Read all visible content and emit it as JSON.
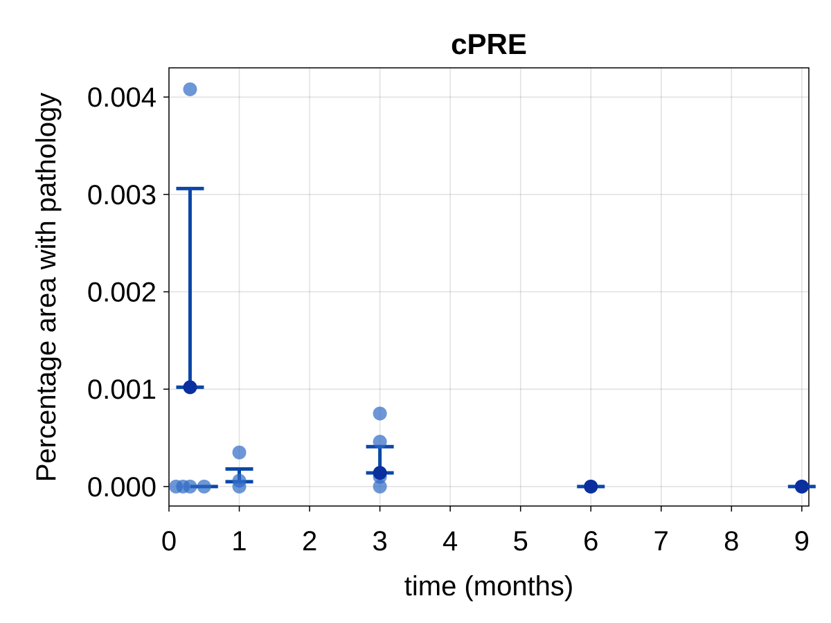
{
  "chart_data": {
    "type": "scatter",
    "title": "cPRE",
    "xlabel": "time (months)",
    "ylabel": "Percentage area with pathology",
    "xlim": [
      0,
      9.1
    ],
    "ylim": [
      -0.0002,
      0.0043
    ],
    "xticks": [
      0,
      1,
      2,
      3,
      4,
      5,
      6,
      7,
      8,
      9
    ],
    "xtick_labels": [
      "0",
      "1",
      "2",
      "3",
      "4",
      "5",
      "6",
      "7",
      "8",
      "9"
    ],
    "yticks": [
      0,
      0.001,
      0.002,
      0.003,
      0.004
    ],
    "ytick_labels": [
      "0.000",
      "0.001",
      "0.002",
      "0.003",
      "0.004"
    ],
    "grid": true,
    "colors": {
      "points": "#2d69c4",
      "points_opacity": 0.7,
      "mean_marker": "#0a2f9e",
      "errorbar": "#0b47a8"
    },
    "points": [
      {
        "x": 0.1,
        "y": 0
      },
      {
        "x": 0.2,
        "y": 0
      },
      {
        "x": 0.3,
        "y": 0
      },
      {
        "x": 0.3,
        "y": 0.00408
      },
      {
        "x": 0.5,
        "y": 0
      },
      {
        "x": 1,
        "y": 0
      },
      {
        "x": 1,
        "y": 6e-05
      },
      {
        "x": 1,
        "y": 0.00035
      },
      {
        "x": 3,
        "y": 0
      },
      {
        "x": 3,
        "y": 0.0001
      },
      {
        "x": 3,
        "y": 0.00046
      },
      {
        "x": 3,
        "y": 0.00075
      },
      {
        "x": 6,
        "y": 0
      },
      {
        "x": 9,
        "y": 0
      }
    ],
    "summary": [
      {
        "x": 0.3,
        "mean": 0.00102,
        "low": 0.00102,
        "high": 0.00306,
        "mean_point": true
      },
      {
        "x": 0.5,
        "mean": 0,
        "low": 0,
        "high": 0,
        "mean_point": false
      },
      {
        "x": 1,
        "mean": 5e-05,
        "low": 5e-05,
        "high": 0.00018,
        "mean_point": false
      },
      {
        "x": 3,
        "mean": 0.00014,
        "low": 0.00014,
        "high": 0.00041,
        "mean_point": true
      },
      {
        "x": 6,
        "mean": 0,
        "low": 0,
        "high": 0,
        "mean_point": true
      },
      {
        "x": 9,
        "mean": 0,
        "low": 0,
        "high": 0,
        "mean_point": true
      }
    ]
  }
}
